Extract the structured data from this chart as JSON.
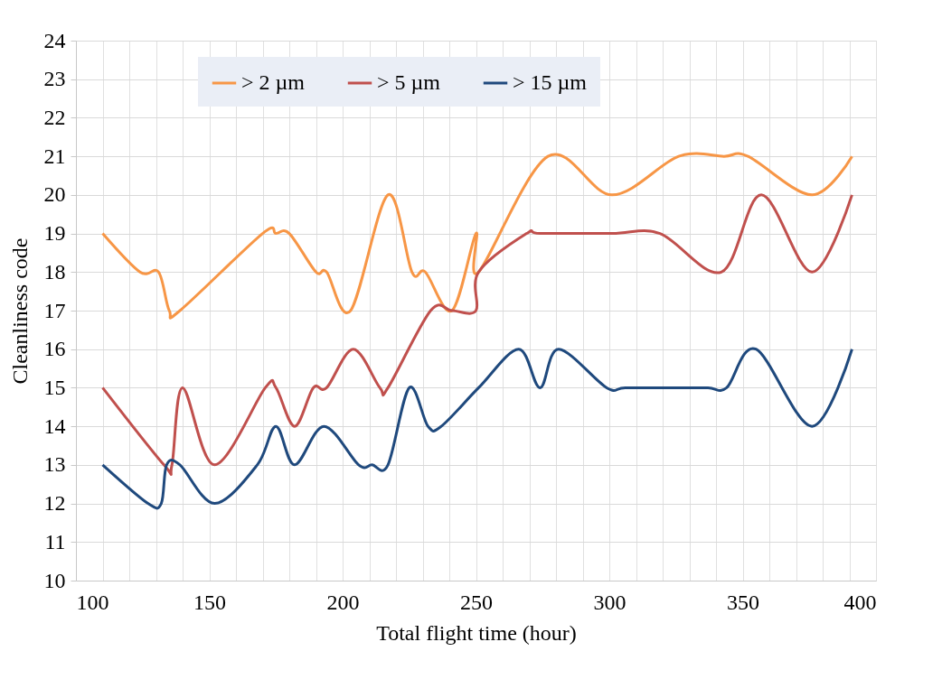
{
  "chart_data": {
    "type": "line",
    "xlabel": "Total flight time (hour)",
    "ylabel": "Cleanliness code",
    "xlim": [
      100,
      400
    ],
    "xticks": [
      100,
      {
        "value": 110,
        "label": null
      },
      {
        "value": 120,
        "label": null
      },
      {
        "value": 130,
        "label": null
      },
      {
        "value": 140,
        "label": null
      },
      150,
      {
        "value": 160,
        "label": null
      },
      {
        "value": 170,
        "label": null
      },
      {
        "value": 180,
        "label": null
      },
      {
        "value": 190,
        "label": null
      },
      200,
      {
        "value": 210,
        "label": null
      },
      {
        "value": 220,
        "label": null
      },
      {
        "value": 230,
        "label": null
      },
      {
        "value": 240,
        "label": null
      },
      250,
      {
        "value": 260,
        "label": null
      },
      {
        "value": 270,
        "label": null
      },
      {
        "value": 280,
        "label": null
      },
      {
        "value": 290,
        "label": null
      },
      300,
      {
        "value": 310,
        "label": null
      },
      {
        "value": 320,
        "label": null
      },
      {
        "value": 330,
        "label": null
      },
      {
        "value": 340,
        "label": null
      },
      350,
      {
        "value": 360,
        "label": null
      },
      {
        "value": 370,
        "label": null
      },
      {
        "value": 380,
        "label": null
      },
      {
        "value": 390,
        "label": null
      },
      400
    ],
    "ylim": [
      10,
      24
    ],
    "yticks": [
      10,
      11,
      12,
      13,
      14,
      15,
      16,
      17,
      18,
      19,
      20,
      21,
      22,
      23,
      24
    ],
    "grid": true,
    "legend": "top",
    "marker": "none",
    "line_style": "solid",
    "series": [
      {
        "name": "> 2 µm",
        "color": "#f79646",
        "x": [
          110,
          124,
          131,
          135,
          139,
          170,
          175,
          180,
          190,
          194,
          203,
          217,
          226,
          231,
          241,
          250,
          251,
          277,
          301,
          326,
          343,
          352,
          376,
          391
        ],
        "values": [
          19,
          18,
          18,
          17,
          17,
          19,
          19,
          19,
          18,
          18,
          17,
          20,
          18,
          18,
          17,
          19,
          18,
          21,
          20,
          21,
          21,
          21,
          20,
          21
        ]
      },
      {
        "name": "> 5 µm",
        "color": "#c0504d",
        "x": [
          110,
          133,
          136,
          140,
          152,
          171,
          175,
          182,
          189,
          194,
          204,
          214,
          217,
          233,
          241,
          250,
          251,
          269,
          274,
          301,
          319,
          342,
          357,
          376,
          391
        ],
        "values": [
          15,
          13,
          13,
          15,
          13,
          15,
          15,
          14,
          15,
          15,
          16,
          15,
          15,
          17,
          17,
          17,
          18,
          19,
          19,
          19,
          19,
          18,
          20,
          18,
          20
        ]
      },
      {
        "name": "> 15 µm",
        "color": "#1f497d",
        "x": [
          110,
          127,
          132,
          134,
          139,
          152,
          168,
          175,
          182,
          193,
          206,
          211,
          217,
          225,
          232,
          237,
          251,
          266,
          274,
          281,
          299,
          306,
          324,
          337,
          344,
          355,
          376,
          391
        ],
        "values": [
          13,
          12,
          12,
          13,
          13,
          12,
          13,
          14,
          13,
          14,
          13,
          13,
          13,
          15,
          14,
          14,
          15,
          16,
          15,
          16,
          15,
          15,
          15,
          15,
          15,
          16,
          14,
          16
        ]
      }
    ]
  }
}
